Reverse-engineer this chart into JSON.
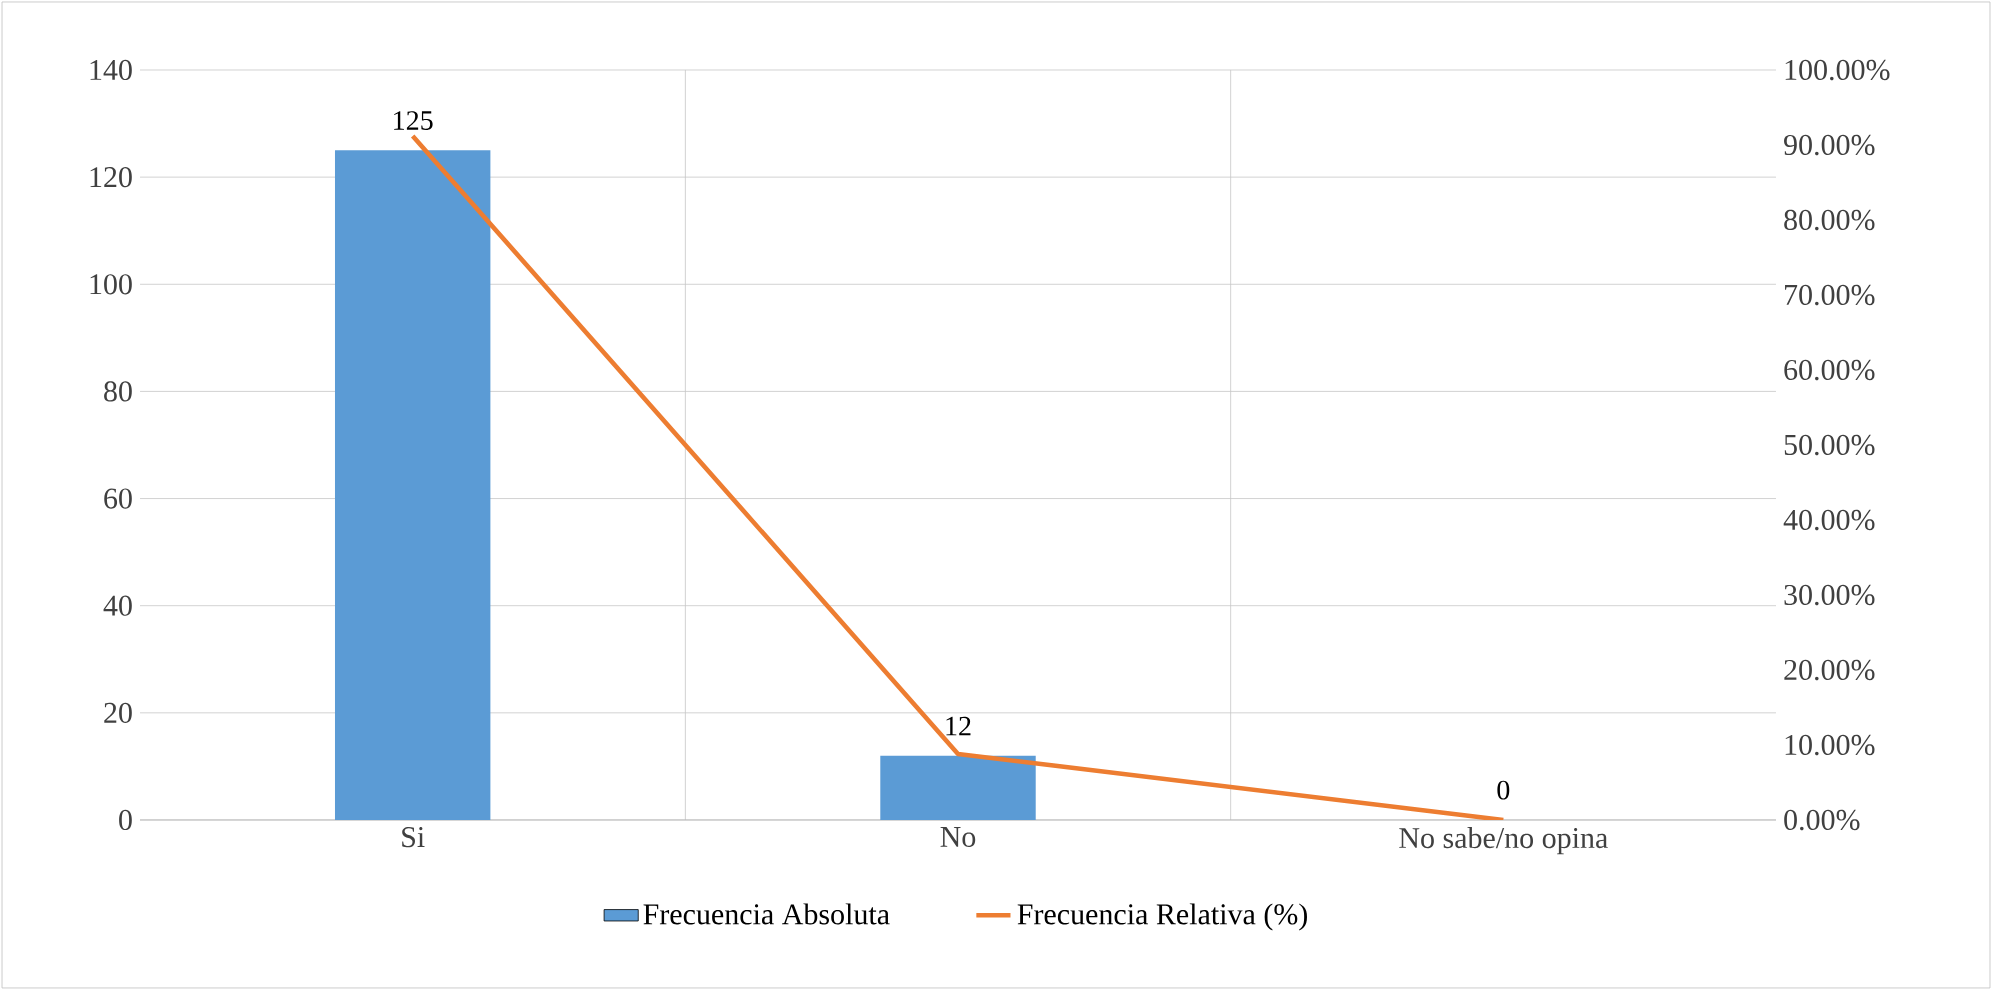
{
  "chart_data": {
    "type": "bar",
    "categories": [
      "Si",
      "No",
      "No sabe/no opina"
    ],
    "series": [
      {
        "name": "Frecuencia Absoluta",
        "color": "#5b9bd5",
        "values": [
          125,
          12,
          0
        ],
        "value_labels": [
          "125",
          "12",
          "0"
        ]
      },
      {
        "name": "Frecuencia Relativa (%)",
        "type": "line",
        "axis": "y2",
        "color": "#ed7d31",
        "values": [
          91.2,
          8.8,
          0
        ]
      }
    ],
    "ylim": [
      0,
      140
    ],
    "yticks": [
      0,
      20,
      40,
      60,
      80,
      100,
      120,
      140
    ],
    "y2lim": [
      0,
      100
    ],
    "y2ticks": [
      {
        "value": 0,
        "label": "0.00%"
      },
      {
        "value": 10,
        "label": "10.00%"
      },
      {
        "value": 20,
        "label": "20.00%"
      },
      {
        "value": 30,
        "label": "30.00%"
      },
      {
        "value": 40,
        "label": "40.00%"
      },
      {
        "value": 50,
        "label": "50.00%"
      },
      {
        "value": 60,
        "label": "60.00%"
      },
      {
        "value": 70,
        "label": "70.00%"
      },
      {
        "value": 80,
        "label": "80.00%"
      },
      {
        "value": 90,
        "label": "90.00%"
      },
      {
        "value": 100,
        "label": "100.00%"
      }
    ],
    "grid": true,
    "legend": "bottom"
  }
}
